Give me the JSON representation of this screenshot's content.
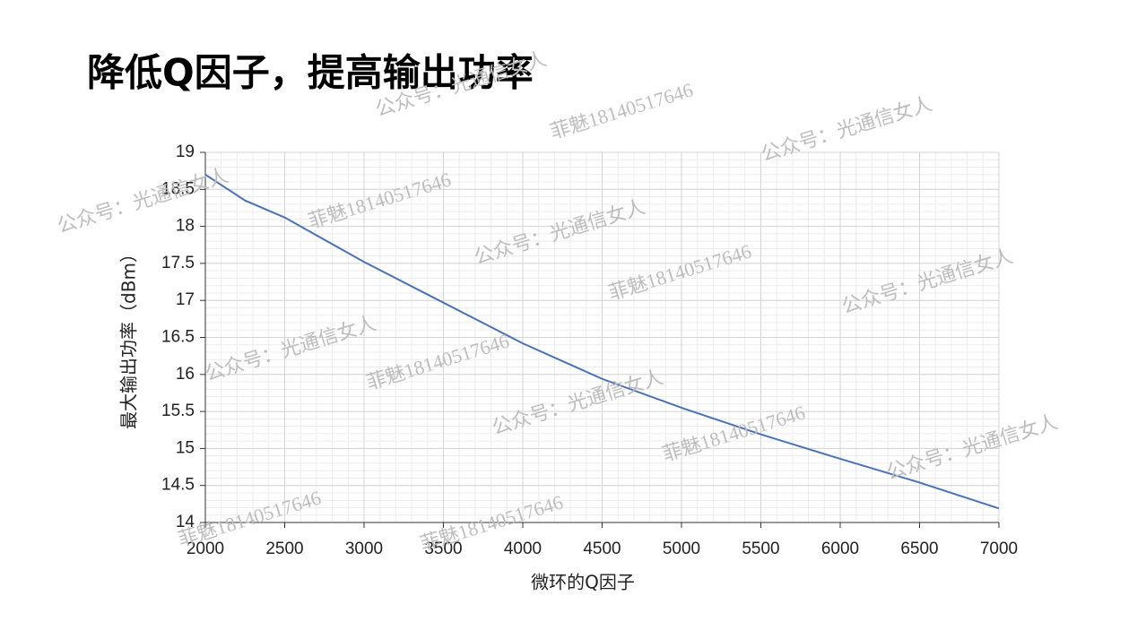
{
  "chart_data": {
    "type": "line",
    "title": "降低Q因子，提高输出功率",
    "xlabel": "微环的Q因子",
    "ylabel": "最大输出功率（dBm）",
    "x": [
      2000,
      2250,
      2500,
      3000,
      3500,
      4000,
      4500,
      5000,
      5500,
      6000,
      6500,
      7000
    ],
    "values": [
      18.7,
      18.35,
      18.12,
      17.52,
      16.97,
      16.42,
      15.94,
      15.55,
      15.19,
      14.86,
      14.54,
      14.19
    ],
    "color": "#4a72b8",
    "xlim": [
      2000,
      7000
    ],
    "xticks": [
      2000,
      2500,
      3000,
      3500,
      4000,
      4500,
      5000,
      5500,
      6000,
      6500,
      7000
    ],
    "ylim": [
      14,
      19
    ],
    "yticks": [
      14,
      14.5,
      15,
      15.5,
      16,
      16.5,
      17,
      17.5,
      18,
      18.5,
      19
    ],
    "grid": true,
    "minor_grid": true
  },
  "watermarks": [
    "公众号：光通信女人",
    "菲魅18140517646",
    "公众号：光通信女人",
    "公众号：光通信女人",
    "菲魅18140517646",
    "公众号：光通信女人",
    "菲魅18140517646",
    "公众号：光通信女人",
    "菲魅18140517646",
    "公众号：光通信女人",
    "公众号：光通信女人",
    "菲魅18140517646",
    "菲魅18140517646",
    "公众号：光通信女人",
    "菲魅18140517646"
  ]
}
